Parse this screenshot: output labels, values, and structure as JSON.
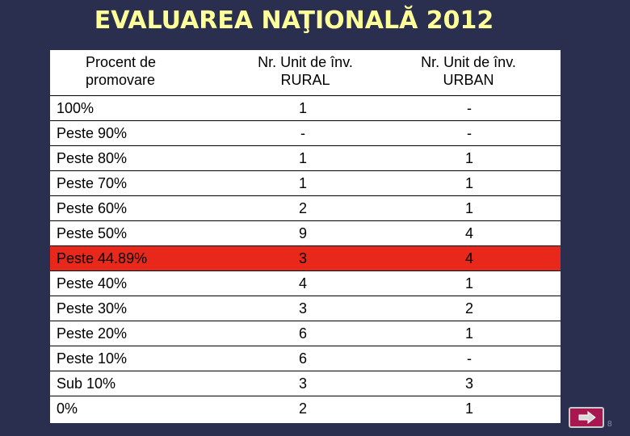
{
  "title": "EVALUAREA NAŢIONALĂ 2012",
  "table": {
    "headers": [
      "Procent de promovare",
      "Nr. Unit de înv. RURAL",
      "Nr. Unit de înv. URBAN"
    ],
    "rows": [
      {
        "label": "100%",
        "rural": "1",
        "urban": "-"
      },
      {
        "label": "Peste 90%",
        "rural": "-",
        "urban": "-"
      },
      {
        "label": "Peste 80%",
        "rural": "1",
        "urban": "1"
      },
      {
        "label": "Peste 70%",
        "rural": "1",
        "urban": "1"
      },
      {
        "label": "Peste 60%",
        "rural": "2",
        "urban": "1"
      },
      {
        "label": "Peste 50%",
        "rural": "9",
        "urban": "4"
      },
      {
        "label": "Peste 44.89%",
        "rural": "3",
        "urban": "4",
        "highlight": true
      },
      {
        "label": "Peste 40%",
        "rural": "4",
        "urban": "1"
      },
      {
        "label": "Peste 30%",
        "rural": "3",
        "urban": "2"
      },
      {
        "label": "Peste 20%",
        "rural": "6",
        "urban": "1"
      },
      {
        "label": "Peste 10%",
        "rural": "6",
        "urban": "-"
      },
      {
        "label": "Sub 10%",
        "rural": "3",
        "urban": "3"
      },
      {
        "label": "0%",
        "rural": "2",
        "urban": "1"
      }
    ]
  },
  "highlight_color": "#e8281a",
  "nav_button": {
    "icon": "arrow-right-icon"
  },
  "page_number": "8"
}
